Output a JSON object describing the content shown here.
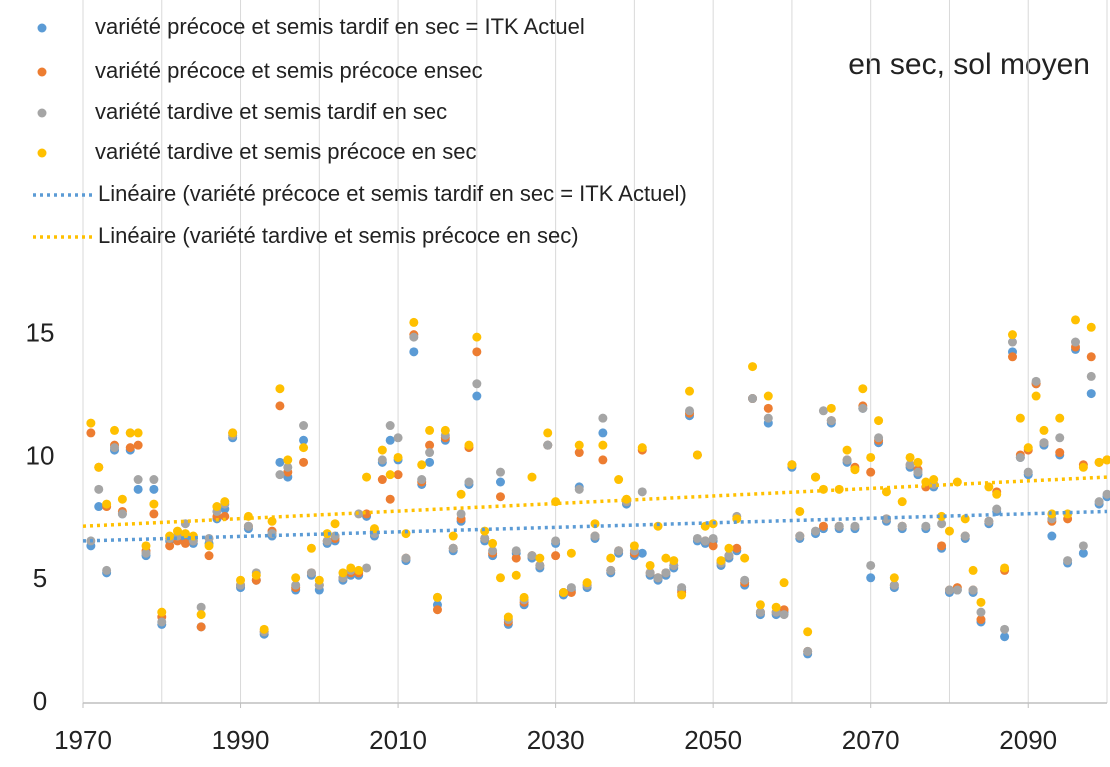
{
  "chart_data": {
    "type": "scatter",
    "title": "en sec, sol moyen",
    "x": [
      1971,
      1972,
      1973,
      1974,
      1975,
      1976,
      1977,
      1978,
      1979,
      1980,
      1981,
      1982,
      1983,
      1984,
      1985,
      1986,
      1987,
      1988,
      1989,
      1990,
      1991,
      1992,
      1993,
      1994,
      1995,
      1996,
      1997,
      1998,
      1999,
      2000,
      2001,
      2002,
      2003,
      2004,
      2005,
      2006,
      2007,
      2008,
      2009,
      2010,
      2011,
      2012,
      2013,
      2014,
      2015,
      2016,
      2017,
      2018,
      2019,
      2020,
      2021,
      2022,
      2023,
      2024,
      2025,
      2026,
      2027,
      2028,
      2029,
      2030,
      2031,
      2032,
      2033,
      2034,
      2035,
      2036,
      2037,
      2038,
      2039,
      2040,
      2041,
      2042,
      2043,
      2044,
      2045,
      2046,
      2047,
      2048,
      2049,
      2050,
      2051,
      2052,
      2053,
      2054,
      2055,
      2056,
      2057,
      2058,
      2059,
      2060,
      2061,
      2062,
      2063,
      2064,
      2065,
      2066,
      2067,
      2068,
      2069,
      2070,
      2071,
      2072,
      2073,
      2074,
      2075,
      2076,
      2077,
      2078,
      2079,
      2080,
      2081,
      2082,
      2083,
      2084,
      2085,
      2086,
      2087,
      2088,
      2089,
      2090,
      2091,
      2092,
      2093,
      2094,
      2095,
      2096,
      2097,
      2098,
      2099,
      2100
    ],
    "series": [
      {
        "name": "variété précoce et semis tardif en sec = ITK Actuel",
        "color": "#5b9bd5",
        "values": [
          6.4,
          8.0,
          5.3,
          10.3,
          7.7,
          10.3,
          8.7,
          6.0,
          8.7,
          3.2,
          6.6,
          6.8,
          6.7,
          6.5,
          3.1,
          6.5,
          7.5,
          7.9,
          10.8,
          4.7,
          7.1,
          5.0,
          2.8,
          6.8,
          9.8,
          9.2,
          4.6,
          10.7,
          5.2,
          4.6,
          6.5,
          6.6,
          5.0,
          5.2,
          5.2,
          7.6,
          6.8,
          9.8,
          10.7,
          9.9,
          5.8,
          14.3,
          8.9,
          9.8,
          4.0,
          10.7,
          6.2,
          7.4,
          8.9,
          12.5,
          6.6,
          6.0,
          9.0,
          3.2,
          6.1,
          4.0,
          5.9,
          5.5,
          10.5,
          6.5,
          4.4,
          4.6,
          8.8,
          4.7,
          6.7,
          11.0,
          5.3,
          6.1,
          8.1,
          6.0,
          6.1,
          5.2,
          5.0,
          5.2,
          5.5,
          4.6,
          11.7,
          6.6,
          6.5,
          6.6,
          5.6,
          5.9,
          6.2,
          4.8,
          12.4,
          3.6,
          11.4,
          3.6,
          3.7,
          9.6,
          6.7,
          2.0,
          6.9,
          7.1,
          11.4,
          7.1,
          9.8,
          7.1,
          12.0,
          5.1,
          10.6,
          7.4,
          4.7,
          7.1,
          9.6,
          9.3,
          7.1,
          8.8,
          6.3,
          4.5,
          4.6,
          6.7,
          4.5,
          3.3,
          7.3,
          7.8,
          2.7,
          14.3,
          10.0,
          9.3,
          13.0,
          10.5,
          6.8,
          10.1,
          5.7,
          14.4,
          6.1,
          12.6,
          8.1,
          8.4
        ]
      },
      {
        "name": "variété précoce et semis précoce ensec",
        "color": "#ed7d31",
        "values": [
          11.0,
          9.6,
          8.0,
          10.5,
          7.8,
          10.4,
          10.5,
          6.2,
          7.7,
          3.5,
          6.4,
          6.6,
          6.5,
          6.6,
          3.1,
          6.0,
          7.6,
          7.6,
          11.0,
          4.8,
          7.2,
          5.0,
          2.9,
          7.0,
          12.1,
          9.4,
          4.7,
          9.8,
          5.3,
          4.8,
          6.6,
          6.7,
          5.1,
          5.3,
          5.3,
          7.7,
          7.0,
          9.1,
          8.3,
          9.3,
          5.9,
          15.0,
          9.0,
          10.5,
          3.8,
          10.8,
          6.3,
          7.5,
          10.4,
          14.3,
          6.7,
          6.1,
          8.4,
          3.3,
          5.9,
          4.1,
          6.0,
          5.6,
          10.5,
          6.0,
          4.5,
          4.5,
          10.2,
          4.8,
          6.8,
          9.9,
          5.4,
          6.2,
          8.2,
          6.1,
          10.3,
          5.3,
          5.1,
          5.3,
          5.6,
          4.5,
          11.8,
          10.1,
          6.6,
          6.4,
          5.7,
          6.0,
          6.3,
          4.9,
          12.4,
          3.7,
          12.0,
          3.7,
          3.8,
          9.7,
          6.8,
          2.1,
          9.2,
          7.2,
          11.5,
          7.2,
          9.9,
          9.6,
          12.1,
          9.4,
          10.7,
          7.5,
          4.8,
          7.2,
          9.7,
          9.5,
          8.8,
          8.9,
          6.4,
          4.6,
          4.7,
          6.8,
          4.6,
          3.4,
          7.4,
          8.6,
          5.4,
          14.1,
          10.1,
          10.3,
          13.0,
          10.6,
          7.4,
          10.2,
          7.5,
          14.5,
          9.7,
          14.1,
          9.8,
          9.9
        ]
      },
      {
        "name": "variété tardive et semis tardif en sec",
        "color": "#a5a5a5",
        "values": [
          6.6,
          8.7,
          5.4,
          10.4,
          7.7,
          11.0,
          9.1,
          6.1,
          9.1,
          3.3,
          6.7,
          6.8,
          7.3,
          6.6,
          3.9,
          6.7,
          7.8,
          8.1,
          10.9,
          4.8,
          7.2,
          5.3,
          2.9,
          6.9,
          9.3,
          9.6,
          4.8,
          11.3,
          5.3,
          4.8,
          6.6,
          6.8,
          5.1,
          5.4,
          7.7,
          5.5,
          6.9,
          9.9,
          11.3,
          10.8,
          5.9,
          14.9,
          9.1,
          10.2,
          4.3,
          10.9,
          6.3,
          7.7,
          9.0,
          13.0,
          6.7,
          6.2,
          9.4,
          3.4,
          6.2,
          4.2,
          6.0,
          5.6,
          10.5,
          6.6,
          4.5,
          4.7,
          8.7,
          4.8,
          6.8,
          11.6,
          5.4,
          6.2,
          8.2,
          6.2,
          8.6,
          5.3,
          5.1,
          5.3,
          5.6,
          4.7,
          11.9,
          6.7,
          6.6,
          6.7,
          5.7,
          6.0,
          7.6,
          5.0,
          12.4,
          3.7,
          11.6,
          3.7,
          3.6,
          9.7,
          6.8,
          2.1,
          7.0,
          11.9,
          11.5,
          7.2,
          9.9,
          7.2,
          12.0,
          5.6,
          10.8,
          7.5,
          4.8,
          7.2,
          9.7,
          9.4,
          7.2,
          8.9,
          7.3,
          4.6,
          4.6,
          6.8,
          4.6,
          3.7,
          7.4,
          7.9,
          3.0,
          14.7,
          10.0,
          9.4,
          13.1,
          10.6,
          7.5,
          10.8,
          5.8,
          14.7,
          6.4,
          13.3,
          8.2,
          8.5
        ]
      },
      {
        "name": "variété tardive  et semis précoce en sec",
        "color": "#ffc000",
        "values": [
          11.4,
          9.6,
          8.1,
          11.1,
          8.3,
          11.0,
          11.0,
          6.4,
          8.1,
          3.7,
          6.8,
          7.0,
          6.9,
          6.8,
          3.6,
          6.4,
          8.0,
          8.2,
          11.0,
          5.0,
          7.6,
          5.2,
          3.0,
          7.4,
          12.8,
          9.9,
          5.1,
          10.4,
          6.3,
          5.0,
          6.9,
          7.3,
          5.3,
          5.5,
          5.4,
          9.2,
          7.1,
          10.3,
          9.3,
          10.0,
          6.9,
          15.5,
          9.7,
          11.1,
          4.3,
          11.1,
          6.8,
          8.5,
          10.5,
          14.9,
          7.0,
          6.5,
          5.1,
          3.5,
          5.2,
          4.3,
          9.2,
          5.9,
          11.0,
          8.2,
          4.5,
          6.1,
          10.5,
          4.9,
          7.3,
          10.5,
          5.9,
          9.1,
          8.3,
          6.4,
          10.4,
          5.6,
          7.2,
          5.9,
          5.8,
          4.4,
          12.7,
          10.1,
          7.2,
          7.3,
          5.8,
          6.3,
          7.5,
          5.9,
          13.7,
          4.0,
          12.5,
          3.9,
          4.9,
          9.7,
          7.8,
          2.9,
          9.2,
          8.7,
          12.0,
          8.7,
          10.3,
          9.5,
          12.8,
          10.0,
          11.5,
          8.6,
          5.1,
          8.2,
          10.0,
          9.8,
          9.0,
          9.1,
          7.6,
          7.0,
          9.0,
          7.5,
          5.4,
          4.1,
          8.8,
          8.5,
          5.5,
          15.0,
          11.6,
          10.4,
          12.5,
          11.1,
          7.7,
          11.6,
          7.7,
          15.6,
          9.6,
          15.3,
          9.8,
          9.9
        ]
      }
    ],
    "trendlines": [
      {
        "name": "Linéaire (variété précoce et semis tardif en sec = ITK Actuel)",
        "color": "#5b9bd5",
        "x": [
          1970,
          2100
        ],
        "values": [
          6.6,
          7.8
        ]
      },
      {
        "name": "Linéaire (variété tardive  et semis précoce en sec)",
        "color": "#ffc000",
        "x": [
          1970,
          2100
        ],
        "values": [
          7.2,
          9.2
        ]
      }
    ],
    "xlim": [
      1970,
      2100
    ],
    "xticks": [
      1970,
      1990,
      2010,
      2030,
      2050,
      2070,
      2090
    ],
    "xgrid": [
      1970,
      1980,
      1990,
      2000,
      2010,
      2020,
      2030,
      2040,
      2050,
      2060,
      2070,
      2080,
      2090,
      2100
    ],
    "ylim": [
      0,
      18
    ],
    "yticks": [
      0,
      5,
      10,
      15
    ]
  }
}
